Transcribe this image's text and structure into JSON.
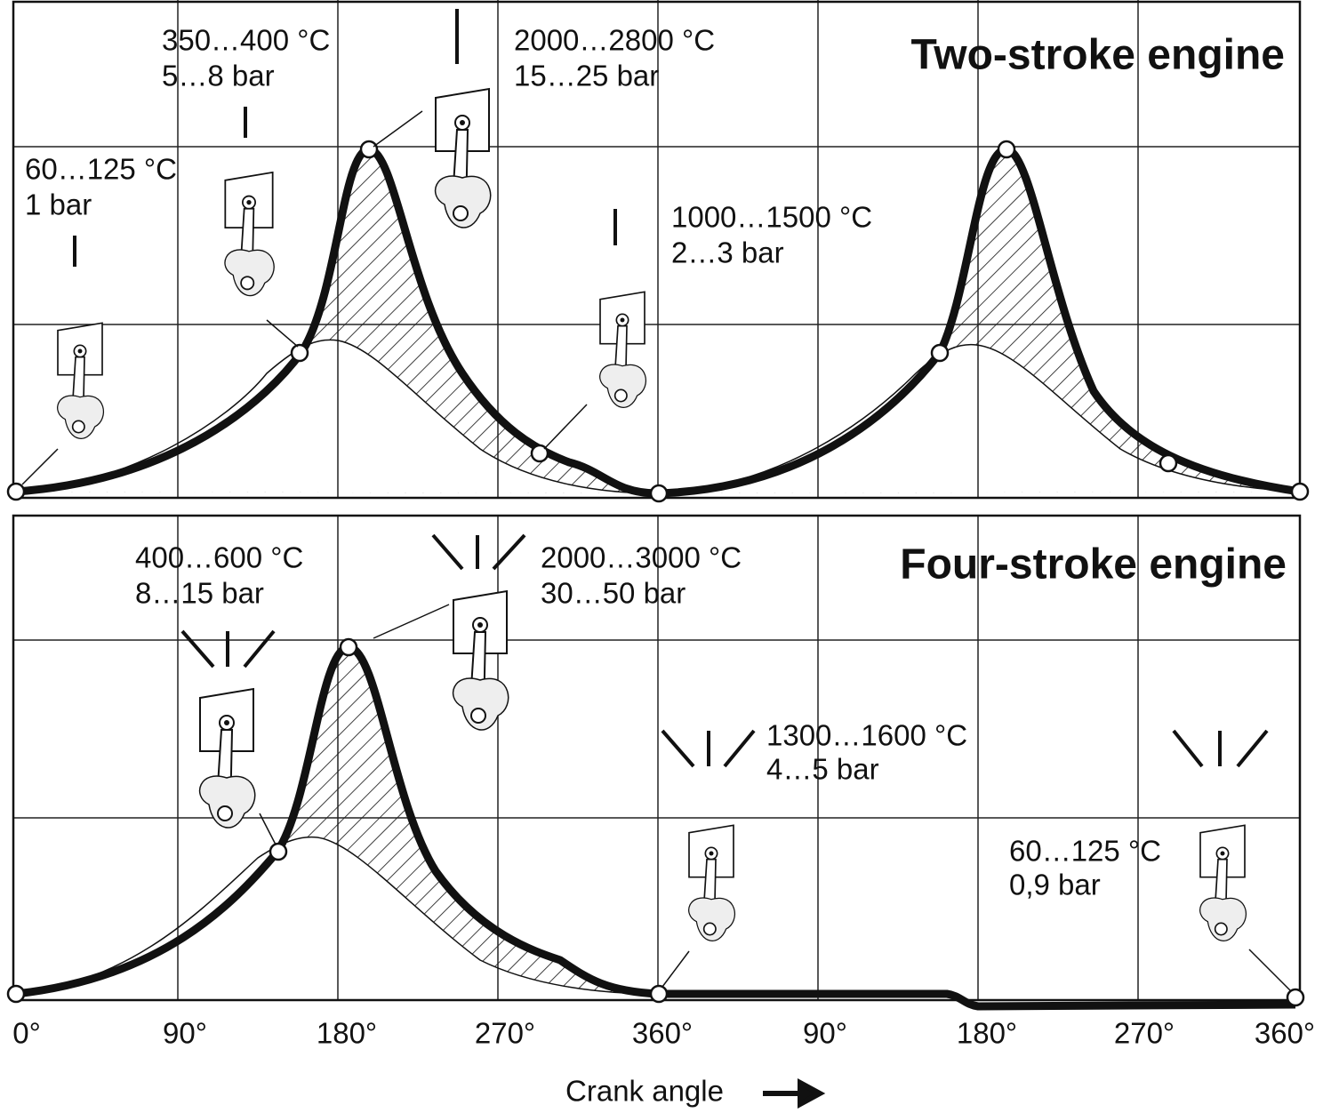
{
  "panels": [
    {
      "title": "Two-stroke engine",
      "annotations": [
        {
          "temperature": "60…125 °C",
          "pressure": "1 bar"
        },
        {
          "temperature": "350…400 °C",
          "pressure": "5…8 bar"
        },
        {
          "temperature": "2000…2800 °C",
          "pressure": "15…25 bar"
        },
        {
          "temperature": "1000…1500 °C",
          "pressure": "2…3 bar"
        }
      ]
    },
    {
      "title": "Four-stroke engine",
      "annotations": [
        {
          "temperature": "400…600 °C",
          "pressure": "8…15 bar"
        },
        {
          "temperature": "2000…3000 °C",
          "pressure": "30…50 bar"
        },
        {
          "temperature": "1300…1600 °C",
          "pressure": "4…5 bar"
        },
        {
          "temperature": "60…125 °C",
          "pressure": "0,9 bar"
        }
      ]
    }
  ],
  "x_axis": {
    "label": "Crank angle",
    "ticks": [
      "0°",
      "90°",
      "180°",
      "270°",
      "360°",
      "90°",
      "180°",
      "270°",
      "360°"
    ]
  }
}
